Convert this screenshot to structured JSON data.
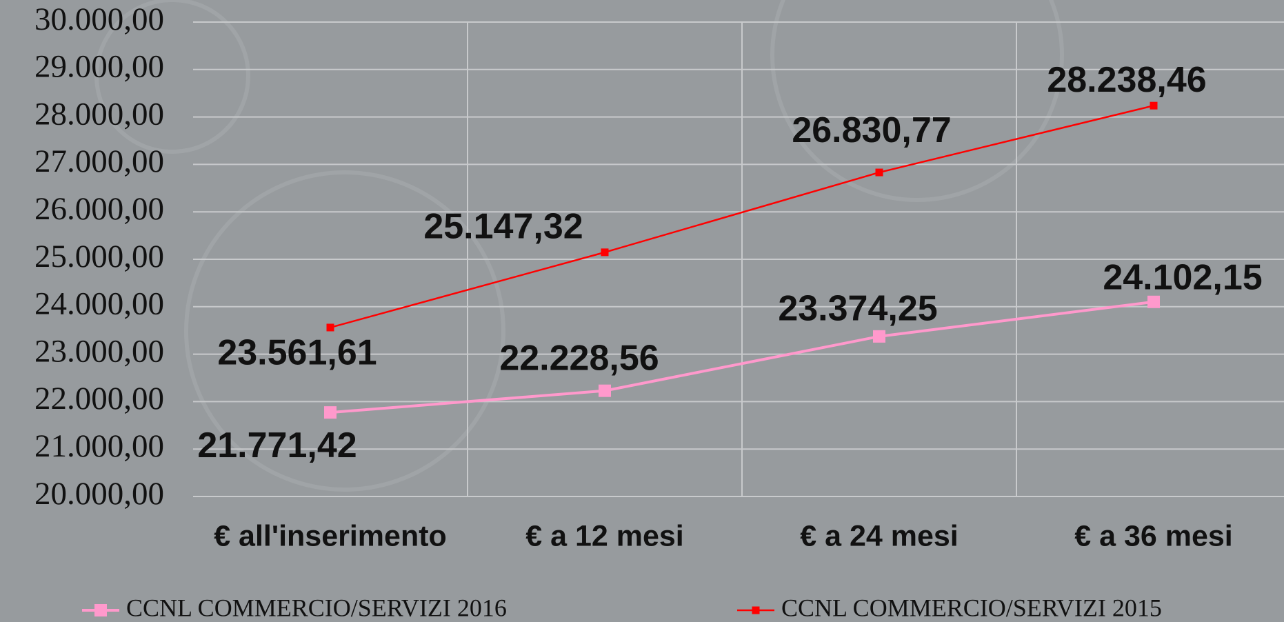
{
  "chart_data": {
    "type": "line",
    "categories": [
      "€ all'inserimento",
      "€ a 12 mesi",
      "€ a 24 mesi",
      "€ a 36 mesi"
    ],
    "series": [
      {
        "name": "CCNL COMMERCIO/SERVIZI 2016",
        "color": "#ff99cc",
        "values": [
          21771.42,
          22228.56,
          23374.25,
          24102.15
        ],
        "value_labels": [
          "21.771,42",
          "22.228,56",
          "23.374,25",
          "24.102,15"
        ]
      },
      {
        "name": "CCNL COMMERCIO/SERVIZI 2015",
        "color": "#ff0000",
        "values": [
          23561.61,
          25147.32,
          26830.77,
          28238.46
        ],
        "value_labels": [
          "23.561,61",
          "25.147,32",
          "26.830,77",
          "28.238,46"
        ]
      }
    ],
    "ylim": [
      20000,
      30000
    ],
    "yticks": [
      {
        "value": 20000,
        "label": "20.000,00"
      },
      {
        "value": 21000,
        "label": "21.000,00"
      },
      {
        "value": 22000,
        "label": "22.000,00"
      },
      {
        "value": 23000,
        "label": "23.000,00"
      },
      {
        "value": 24000,
        "label": "24.000,00"
      },
      {
        "value": 25000,
        "label": "25.000,00"
      },
      {
        "value": 26000,
        "label": "26.000,00"
      },
      {
        "value": 27000,
        "label": "27.000,00"
      },
      {
        "value": 28000,
        "label": "28.000,00"
      },
      {
        "value": 29000,
        "label": "29.000,00"
      },
      {
        "value": 30000,
        "label": "30.000,00"
      }
    ],
    "grid": true,
    "legend": "bottom"
  }
}
